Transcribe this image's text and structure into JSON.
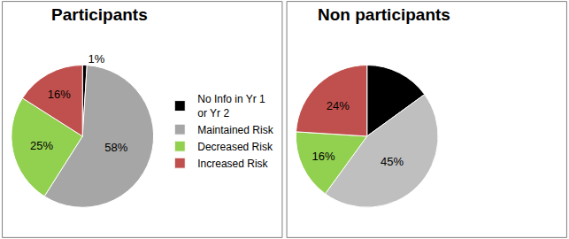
{
  "chart_data": [
    {
      "type": "pie",
      "title": "Participants",
      "categories": [
        "No Info in Yr 1 or Yr 2",
        "Maintained Risk",
        "Decreased Risk",
        "Increased Risk"
      ],
      "values": [
        1,
        58,
        25,
        16
      ],
      "value_labels": [
        "1%",
        "58%",
        "25%",
        "16%"
      ],
      "colors": [
        "#000000",
        "#A6A6A6",
        "#92D050",
        "#C0504D"
      ],
      "data_labels": true,
      "legend": "right"
    },
    {
      "type": "pie",
      "title": "Non participants",
      "categories": [
        "No Info in Yr 1 or Yr 2",
        "Maintained Risk",
        "Decreased Risk",
        "Increased Risk"
      ],
      "values": [
        15,
        45,
        16,
        24
      ],
      "value_labels": [
        null,
        "45%",
        "16%",
        "24%"
      ],
      "colors": [
        "#000000",
        "#BFBFBF",
        "#92D050",
        "#C0504D"
      ],
      "data_labels": true,
      "legend": "right"
    }
  ]
}
